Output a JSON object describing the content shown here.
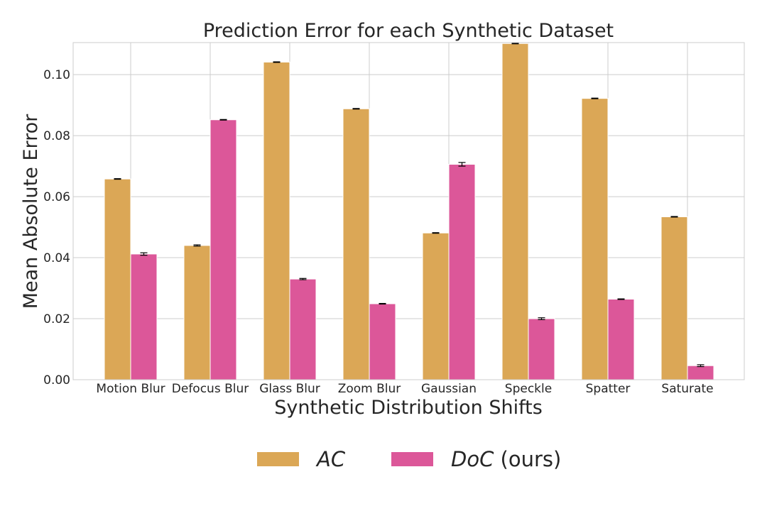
{
  "chart_data": {
    "type": "bar",
    "title": "Prediction Error for each Synthetic Dataset",
    "xlabel": "Synthetic Distribution Shifts",
    "ylabel": "Mean Absolute Error",
    "ylim": [
      0,
      0.1105
    ],
    "yticks": [
      0.0,
      0.02,
      0.04,
      0.06,
      0.08,
      0.1
    ],
    "ytick_labels": [
      "0.00",
      "0.02",
      "0.04",
      "0.06",
      "0.08",
      "0.10"
    ],
    "grid": true,
    "legend_position": "bottom-center",
    "categories": [
      "Motion Blur",
      "Defocus Blur",
      "Glass Blur",
      "Zoom Blur",
      "Gaussian",
      "Speckle",
      "Spatter",
      "Saturate"
    ],
    "series": [
      {
        "name": "AC",
        "legend_suffix": "",
        "color": "#dba756",
        "values": [
          0.0658,
          0.044,
          0.1041,
          0.0888,
          0.0481,
          0.1102,
          0.0922,
          0.0534
        ],
        "errors": [
          0.0001,
          0.0002,
          0.0001,
          0.0001,
          0.0001,
          0.0001,
          0.0001,
          0.0001
        ]
      },
      {
        "name": "DoC",
        "legend_suffix": " (ours)",
        "color": "#dc5799",
        "values": [
          0.0412,
          0.0852,
          0.033,
          0.0249,
          0.0706,
          0.02,
          0.0264,
          0.0046
        ],
        "errors": [
          0.0004,
          0.0001,
          0.0002,
          0.0001,
          0.0006,
          0.0003,
          0.0001,
          0.0003
        ]
      }
    ]
  }
}
